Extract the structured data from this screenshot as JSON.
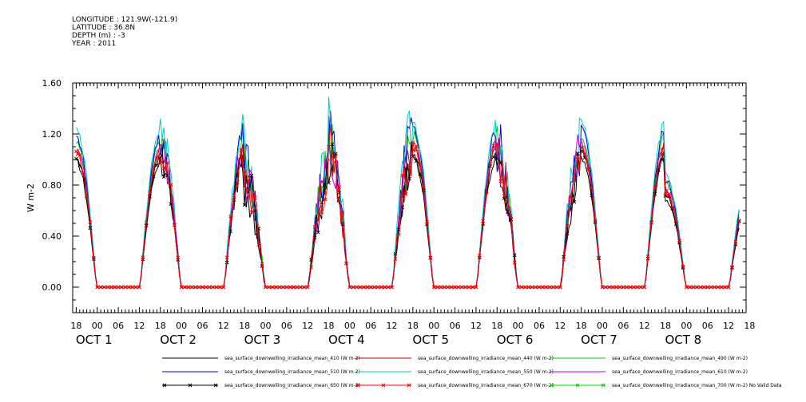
{
  "header": {
    "lines": [
      "LONGITUDE : 121.9W(-121.9)",
      "LATITUDE : 36.8N",
      "DEPTH (m) : -3",
      "YEAR : 2011"
    ]
  },
  "chart_data": {
    "type": "line",
    "title": "",
    "xlabel": "",
    "ylabel": "W m-2",
    "ylim": [
      -0.2,
      1.6
    ],
    "yticks": [
      0.0,
      0.4,
      0.8,
      1.2,
      1.6
    ],
    "ytick_labels": [
      "0.00",
      "0.40",
      "0.80",
      "1.20",
      "1.60"
    ],
    "x_unit": "hours since 2011-10-01 00:00 (local axis)",
    "xlim": [
      -7,
      185
    ],
    "xtick_labels": [
      "18",
      "00",
      "06",
      "12",
      "18",
      "00",
      "06",
      "12",
      "18",
      "00",
      "06",
      "12",
      "18",
      "00",
      "06",
      "12",
      "18",
      "00",
      "06",
      "12",
      "18",
      "00",
      "06",
      "12",
      "18",
      "00",
      "06",
      "12",
      "18",
      "00",
      "06",
      "12",
      "18"
    ],
    "date_labels": [
      {
        "text": "OCT 1",
        "day": 1
      },
      {
        "text": "OCT 2",
        "day": 2
      },
      {
        "text": "OCT 3",
        "day": 3
      },
      {
        "text": "OCT 4",
        "day": 4
      },
      {
        "text": "OCT 5",
        "day": 5
      },
      {
        "text": "OCT 6",
        "day": 6
      },
      {
        "text": "OCT 7",
        "day": 7
      },
      {
        "text": "OCT 8",
        "day": 8
      }
    ],
    "daily_peaks": [
      {
        "day": 1,
        "peak": 1.05,
        "noise": 0.03
      },
      {
        "day": 2,
        "peak": 1.05,
        "noise": 0.12
      },
      {
        "day": 3,
        "peak": 0.85,
        "noise": 0.25
      },
      {
        "day": 4,
        "peak": 1.05,
        "noise": 0.22
      },
      {
        "day": 5,
        "peak": 1.1,
        "noise": 0.04
      },
      {
        "day": 6,
        "peak": 1.0,
        "noise": 0.22
      },
      {
        "day": 7,
        "peak": 1.1,
        "noise": 0.03
      },
      {
        "day": 8,
        "peak": 0.75,
        "noise": 0.04
      }
    ],
    "series": [
      {
        "name": "sea_surface_downwelling_irradiance_mean_410 (W m-2)",
        "color": "#000000",
        "scale": 0.93,
        "marker": "none"
      },
      {
        "name": "sea_surface_downwelling_irradiance_mean_440 (W m-2)",
        "color": "#cc0000",
        "scale": 1.0,
        "marker": "none"
      },
      {
        "name": "sea_surface_downwelling_irradiance_mean_490 (W m-2)",
        "color": "#00cc00",
        "scale": 1.08,
        "marker": "none"
      },
      {
        "name": "sea_surface_downwelling_irradiance_mean_510 (W m-2)",
        "color": "#0000cc",
        "scale": 1.12,
        "marker": "none"
      },
      {
        "name": "sea_surface_downwelling_irradiance_mean_550 (W m-2)",
        "color": "#00cccc",
        "scale": 1.17,
        "marker": "none"
      },
      {
        "name": "sea_surface_downwelling_irradiance_mean_610 (W m-2)",
        "color": "#cc00cc",
        "scale": 1.04,
        "marker": "none"
      },
      {
        "name": "sea_surface_downwelling_irradiance_mean_650 (W m-2)",
        "color": "#000000",
        "scale": 0.97,
        "marker": "x"
      },
      {
        "name": "sea_surface_downwelling_irradiance_mean_670 (W m-2)",
        "color": "#ff0000",
        "scale": 1.01,
        "marker": "x"
      },
      {
        "name": "sea_surface_downwelling_irradiance_mean_700 (W m-2) No Valid Data",
        "color": "#00cc00",
        "scale": 0,
        "marker": "x"
      }
    ]
  }
}
